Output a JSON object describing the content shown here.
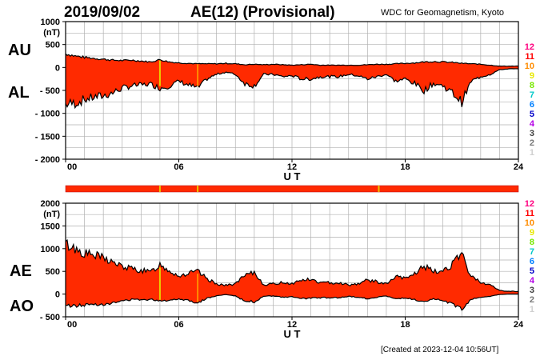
{
  "header": {
    "date": "2019/09/02",
    "title": "AE(12) (Provisional)",
    "organization": "WDC for Geomagnetism, Kyoto"
  },
  "footer": {
    "created": "[Created at 2023-12-04 10:56UT]"
  },
  "legend": {
    "stations": [
      "12",
      "11",
      "10",
      "9",
      "8",
      "7",
      "6",
      "5",
      "4",
      "3",
      "2",
      "1"
    ],
    "colors": [
      "#ff0080",
      "#ff0000",
      "#ff8c00",
      "#e8e800",
      "#78e800",
      "#00c8c8",
      "#0080ff",
      "#0000c8",
      "#b400e6",
      "#404040",
      "#787878",
      "#d0d0d0"
    ]
  },
  "colors": {
    "fill": "#ff2a00",
    "outline": "#000000",
    "strip": "#ff2a00",
    "strip_mark": "#e8c400",
    "grid": "#b0b0b0"
  },
  "strip": {
    "mark_hours": [
      5.0,
      7.0,
      16.6
    ]
  },
  "chart_data": [
    {
      "type": "area",
      "name": "upper_panel",
      "series_labels": [
        "AU",
        "AL"
      ],
      "unit": "(nT)",
      "xlabel": "U T",
      "xlim": [
        0,
        24
      ],
      "ylim": [
        -2000,
        1000
      ],
      "xticks": [
        0,
        6,
        12,
        18,
        24
      ],
      "xtick_labels": [
        "00",
        "06",
        "12",
        "18",
        "24"
      ],
      "yticks": [
        1000,
        500,
        0,
        -500,
        -1000,
        -1500,
        -2000
      ],
      "ytick_labels": [
        "1000",
        "500",
        "0",
        "- 500",
        "- 1000",
        "- 1500",
        "- 2000"
      ],
      "x": [
        0,
        0.5,
        1,
        1.5,
        2,
        2.5,
        3,
        3.5,
        4,
        4.5,
        5,
        5.5,
        6,
        6.5,
        7,
        7.5,
        8,
        8.5,
        9,
        9.5,
        10,
        10.5,
        11,
        11.5,
        12,
        12.5,
        13,
        13.5,
        14,
        14.5,
        15,
        15.5,
        16,
        16.5,
        17,
        17.5,
        18,
        18.5,
        19,
        19.5,
        20,
        20.5,
        21,
        21.5,
        22,
        22.5,
        23,
        23.5,
        24
      ],
      "series": [
        {
          "name": "AU",
          "values": [
            300,
            250,
            220,
            200,
            180,
            160,
            150,
            160,
            140,
            120,
            170,
            120,
            100,
            90,
            80,
            80,
            80,
            90,
            80,
            60,
            70,
            60,
            70,
            60,
            50,
            60,
            70,
            50,
            50,
            50,
            50,
            50,
            60,
            70,
            70,
            80,
            90,
            100,
            120,
            130,
            120,
            110,
            90,
            80,
            70,
            50,
            30,
            30,
            30
          ]
        },
        {
          "name": "AL",
          "values": [
            -800,
            -780,
            -700,
            -650,
            -620,
            -550,
            -450,
            -400,
            -380,
            -360,
            -450,
            -400,
            -300,
            -380,
            -450,
            -250,
            -150,
            -100,
            -150,
            -350,
            -400,
            -150,
            -150,
            -200,
            -180,
            -250,
            -250,
            -200,
            -200,
            -200,
            -150,
            -180,
            -250,
            -200,
            -150,
            -300,
            -250,
            -350,
            -500,
            -350,
            -400,
            -550,
            -750,
            -300,
            -200,
            -150,
            -50,
            -30,
            -30
          ]
        }
      ]
    },
    {
      "type": "area",
      "name": "lower_panel",
      "series_labels": [
        "AE",
        "AO"
      ],
      "unit": "(nT)",
      "xlabel": "U T",
      "xlim": [
        0,
        24
      ],
      "ylim": [
        -500,
        2000
      ],
      "xticks": [
        0,
        6,
        12,
        18,
        24
      ],
      "xtick_labels": [
        "00",
        "06",
        "12",
        "18",
        "24"
      ],
      "yticks": [
        2000,
        1500,
        1000,
        500,
        0,
        -500
      ],
      "ytick_labels": [
        "2000",
        "1500",
        "1000",
        "500",
        "0",
        "- 500"
      ],
      "x": [
        0,
        0.5,
        1,
        1.5,
        2,
        2.5,
        3,
        3.5,
        4,
        4.5,
        5,
        5.5,
        6,
        6.5,
        7,
        7.5,
        8,
        8.5,
        9,
        9.5,
        10,
        10.5,
        11,
        11.5,
        12,
        12.5,
        13,
        13.5,
        14,
        14.5,
        15,
        15.5,
        16,
        16.5,
        17,
        17.5,
        18,
        18.5,
        19,
        19.5,
        20,
        20.5,
        21,
        21.5,
        22,
        22.5,
        23,
        23.5,
        24
      ],
      "series": [
        {
          "name": "AE",
          "values": [
            1100,
            1000,
            900,
            850,
            800,
            700,
            600,
            560,
            520,
            480,
            650,
            520,
            400,
            450,
            500,
            330,
            230,
            190,
            230,
            400,
            470,
            210,
            220,
            260,
            230,
            310,
            320,
            250,
            250,
            250,
            200,
            230,
            310,
            270,
            220,
            380,
            340,
            450,
            620,
            480,
            520,
            660,
            860,
            380,
            270,
            200,
            80,
            60,
            60
          ]
        },
        {
          "name": "AO",
          "values": [
            -250,
            -260,
            -240,
            -220,
            -220,
            -200,
            -150,
            -120,
            -120,
            -120,
            -140,
            -140,
            -100,
            -140,
            -190,
            -90,
            -40,
            -10,
            -40,
            -150,
            -170,
            -50,
            -40,
            -70,
            -60,
            -100,
            -90,
            -80,
            -80,
            -80,
            -50,
            -70,
            -100,
            -70,
            -40,
            -110,
            -80,
            -130,
            -190,
            -110,
            -140,
            -220,
            -330,
            -110,
            -70,
            -50,
            -10,
            0,
            0
          ]
        }
      ]
    }
  ]
}
